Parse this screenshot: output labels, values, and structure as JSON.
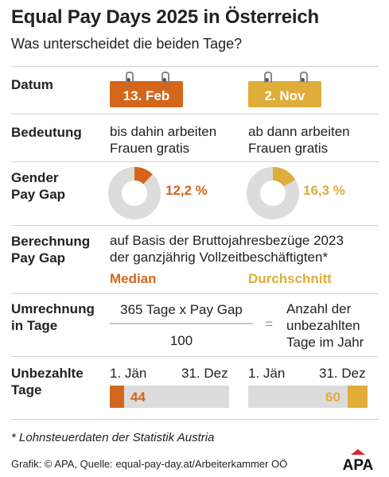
{
  "title": "Equal Pay Days 2025 in Österreich",
  "subtitle": "Was unterscheidet die beiden Tage?",
  "rows": {
    "datum": "Datum",
    "bedeutung": "Bedeutung",
    "gap": [
      "Gender",
      "Pay Gap"
    ],
    "berechnung": [
      "Berechnung",
      "Pay Gap"
    ],
    "umrechnung": [
      "Umrechnung",
      "in Tage"
    ],
    "unbezahlt": [
      "Unbezahlte",
      "Tage"
    ]
  },
  "left": {
    "date": "13. Feb",
    "meaning": [
      "bis dahin arbeiten",
      "Frauen gratis"
    ],
    "pct_label": "12,2 %",
    "pct_value": 12.2,
    "calc_header": "Median",
    "days_label": "44",
    "days_value": 44,
    "color": "#d4661b"
  },
  "right": {
    "date": "2. Nov",
    "meaning": [
      "ab dann arbeiten",
      "Frauen gratis"
    ],
    "pct_label": "16,3 %",
    "pct_value": 16.3,
    "calc_header": "Durchschnitt",
    "days_label": "60",
    "days_value": 60,
    "color": "#e0ad3a"
  },
  "calc_basis": [
    "auf Basis der Bruttojahresbezüge 2023",
    "der ganzjährig Vollzeitbeschäftigten*"
  ],
  "formula": {
    "numerator": "365 Tage x Pay Gap",
    "denominator": "100",
    "equals": "=",
    "result": [
      "Anzahl der",
      "unbezahlten",
      "Tage im Jahr"
    ]
  },
  "axis": {
    "start": "1. Jän",
    "end": "31. Dez",
    "days_in_year": 365
  },
  "footnote": "* Lohnsteuerdaten der Statistik Austria",
  "source": "Grafik: © APA, Quelle: equal-pay-day.at/Arbeiterkammer OÖ",
  "logo": "APA",
  "colors": {
    "donut_track": "#dcdcdc",
    "bar_track": "#dcdcdc"
  },
  "chart_data": [
    {
      "type": "pie",
      "categories": [
        "Gender Pay Gap",
        "Rest"
      ],
      "values": [
        12.2,
        87.8
      ],
      "title": "Median"
    },
    {
      "type": "pie",
      "categories": [
        "Gender Pay Gap",
        "Rest"
      ],
      "values": [
        16.3,
        83.7
      ],
      "title": "Durchschnitt"
    },
    {
      "type": "bar",
      "categories": [
        "Median",
        "Durchschnitt"
      ],
      "values": [
        44,
        60
      ],
      "xlim": [
        0,
        365
      ],
      "xlabel": "",
      "ylabel": ""
    }
  ]
}
